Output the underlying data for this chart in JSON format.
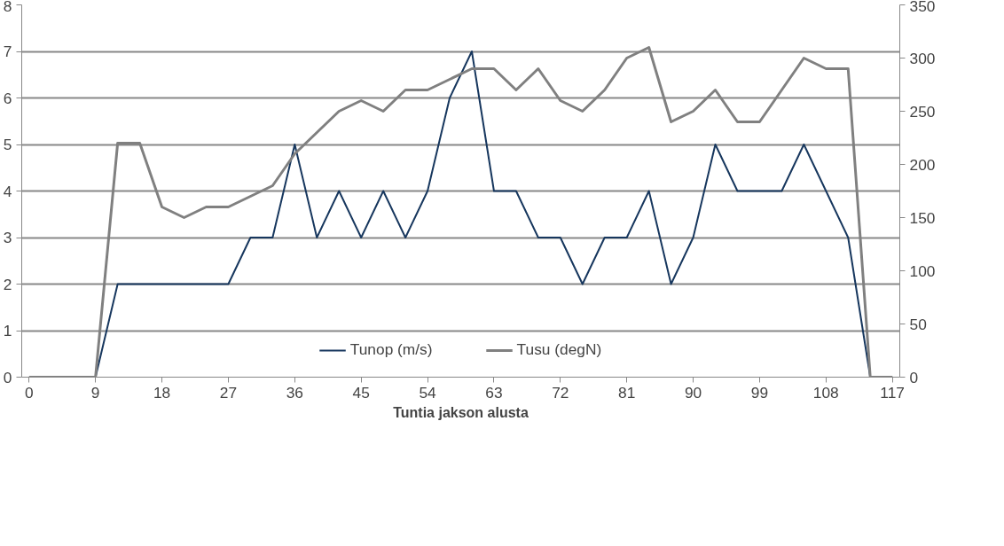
{
  "chart_data": {
    "type": "line",
    "xlabel": "Tuntia jakson alusta",
    "x": [
      0,
      3,
      6,
      9,
      12,
      15,
      18,
      21,
      24,
      27,
      30,
      33,
      36,
      39,
      42,
      45,
      48,
      51,
      54,
      57,
      60,
      63,
      66,
      69,
      72,
      75,
      78,
      81,
      84,
      87,
      90,
      93,
      96,
      99,
      102,
      105,
      108,
      111,
      114,
      117
    ],
    "xlim": [
      -1,
      118
    ],
    "xticks": [
      0,
      9,
      18,
      27,
      36,
      45,
      54,
      63,
      72,
      81,
      90,
      99,
      108,
      117
    ],
    "ylim": [
      0,
      8
    ],
    "yticks": [
      0,
      1,
      2,
      3,
      4,
      5,
      6,
      7,
      8
    ],
    "y2lim": [
      0,
      350
    ],
    "y2ticks": [
      0,
      50,
      100,
      150,
      200,
      250,
      300,
      350
    ],
    "grid": "y",
    "legend": "bottom",
    "line_style": "solid",
    "marker": "none",
    "series": [
      {
        "name": "Tunop (m/s)",
        "color": "#17375e",
        "x": [
          9,
          12,
          15,
          18,
          21,
          24,
          27,
          30,
          33,
          36,
          39,
          42,
          45,
          48,
          51,
          54,
          57,
          60,
          63,
          66,
          69,
          72,
          75,
          78,
          81,
          84,
          87,
          90,
          93,
          96,
          99,
          102,
          105,
          108,
          111,
          114,
          117
        ],
        "values": [
          0,
          2,
          2,
          2,
          2,
          2,
          2,
          3,
          3,
          5,
          3,
          4,
          3,
          4,
          3,
          4,
          6,
          7,
          4,
          4,
          3,
          3,
          2,
          3,
          3,
          4,
          2,
          3,
          5,
          4,
          4,
          4,
          5,
          4,
          3,
          0,
          0
        ]
      },
      {
        "name": "Tusu (degN)",
        "color": "#808080",
        "axis": "y2",
        "values": [
          0,
          0,
          0,
          0,
          220,
          220,
          160,
          150,
          160,
          160,
          170,
          180,
          210,
          230,
          250,
          260,
          250,
          270,
          270,
          280,
          290,
          290,
          270,
          290,
          260,
          250,
          270,
          300,
          310,
          240,
          250,
          270,
          240,
          240,
          270,
          300,
          290,
          290,
          0,
          0
        ]
      }
    ]
  }
}
